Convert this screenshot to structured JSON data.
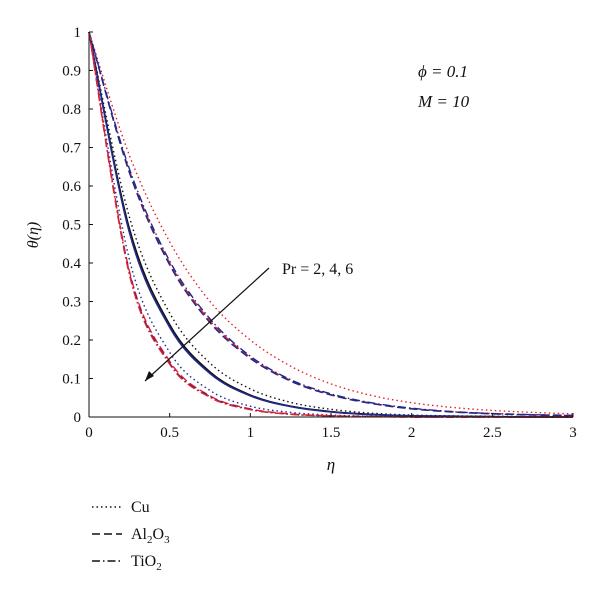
{
  "chart_data": {
    "type": "line",
    "title": "",
    "xlabel": "η",
    "ylabel": "θ(η)",
    "xlim": [
      0,
      3
    ],
    "ylim": [
      0,
      1
    ],
    "xticks": [
      "0",
      "0.5",
      "1",
      "1.5",
      "2",
      "2.5",
      "3"
    ],
    "yticks": [
      "0",
      "0.1",
      "0.2",
      "0.3",
      "0.4",
      "0.5",
      "0.6",
      "0.7",
      "0.8",
      "0.9",
      "1"
    ],
    "grid": false,
    "annotations": {
      "phi": "ϕ = 0.1",
      "M": "M = 10",
      "pr": "Pr = 2, 4, 6"
    },
    "legend_position": "bottom-left",
    "legend": [
      {
        "label": "Cu",
        "style": "dotted"
      },
      {
        "label": "Al2O3",
        "style": "dashed",
        "display": "Al",
        "sub1": "2",
        "mid": "O",
        "sub2": "3"
      },
      {
        "label": "TiO2",
        "style": "dashdot",
        "display": "TiO",
        "sub1": "2"
      }
    ],
    "x": [
      0,
      0.25,
      0.5,
      0.75,
      1,
      1.25,
      1.5,
      1.75,
      2,
      2.25,
      2.5,
      2.75,
      3
    ],
    "series": [
      {
        "name": "Cu",
        "Pr": 2,
        "style": "dotted",
        "color": "#e8202a",
        "values": [
          1,
          0.68,
          0.455,
          0.3,
          0.2,
          0.132,
          0.086,
          0.056,
          0.037,
          0.025,
          0.017,
          0.012,
          0.008
        ]
      },
      {
        "name": "Al2O3",
        "Pr": 2,
        "style": "dashed",
        "color": "#e8202a",
        "values": [
          1,
          0.64,
          0.4,
          0.25,
          0.155,
          0.095,
          0.058,
          0.036,
          0.022,
          0.014,
          0.009,
          0.006,
          0.004
        ]
      },
      {
        "name": "Al2O3",
        "Pr": 2,
        "style": "dashed",
        "color": "#1f2a8a",
        "values": [
          1,
          0.635,
          0.395,
          0.245,
          0.152,
          0.093,
          0.057,
          0.035,
          0.021,
          0.013,
          0.008,
          0.005,
          0.003
        ]
      },
      {
        "name": "TiO2",
        "Pr": 2,
        "style": "dashdot",
        "color": "#1f2a8a",
        "values": [
          1,
          0.645,
          0.405,
          0.255,
          0.158,
          0.097,
          0.06,
          0.037,
          0.023,
          0.014,
          0.009,
          0.006,
          0.004
        ]
      },
      {
        "name": "Cu",
        "Pr": 4,
        "style": "dotted",
        "color": "#111111",
        "values": [
          1,
          0.52,
          0.27,
          0.14,
          0.073,
          0.038,
          0.02,
          0.01,
          0.005,
          0.003,
          0.002,
          0.001,
          0.001
        ]
      },
      {
        "name": "Al2O3",
        "Pr": 4,
        "style": "solid",
        "color": "#111111",
        "values": [
          1,
          0.49,
          0.24,
          0.117,
          0.057,
          0.028,
          0.014,
          0.007,
          0.003,
          0.002,
          0.001,
          0.0,
          0.0
        ]
      },
      {
        "name": "Al2O3",
        "Pr": 4,
        "style": "solid",
        "color": "#1f2a8a",
        "values": [
          1,
          0.48,
          0.233,
          0.113,
          0.055,
          0.027,
          0.013,
          0.006,
          0.003,
          0.002,
          0.001,
          0.0,
          0.0
        ]
      },
      {
        "name": "TiO2",
        "Pr": 6,
        "style": "dotted",
        "color": "#1f2a8a",
        "values": [
          1,
          0.41,
          0.168,
          0.069,
          0.028,
          0.012,
          0.005,
          0.002,
          0.001,
          0.0,
          0.0,
          0.0,
          0.0
        ]
      },
      {
        "name": "Al2O3",
        "Pr": 6,
        "style": "dashed",
        "color": "#e8202a",
        "values": [
          1,
          0.38,
          0.145,
          0.055,
          0.021,
          0.008,
          0.003,
          0.001,
          0.0,
          0.0,
          0.0,
          0.0,
          0.0
        ]
      },
      {
        "name": "TiO2",
        "Pr": 6,
        "style": "dashdot",
        "color": "#1f2a8a",
        "values": [
          1,
          0.375,
          0.14,
          0.053,
          0.02,
          0.007,
          0.003,
          0.001,
          0.0,
          0.0,
          0.0,
          0.0,
          0.0
        ]
      },
      {
        "name": "Cu",
        "Pr": 6,
        "style": "dashdot",
        "color": "#e8202a",
        "values": [
          1,
          0.37,
          0.137,
          0.051,
          0.019,
          0.007,
          0.003,
          0.001,
          0.0,
          0.0,
          0.0,
          0.0,
          0.0
        ]
      }
    ]
  }
}
